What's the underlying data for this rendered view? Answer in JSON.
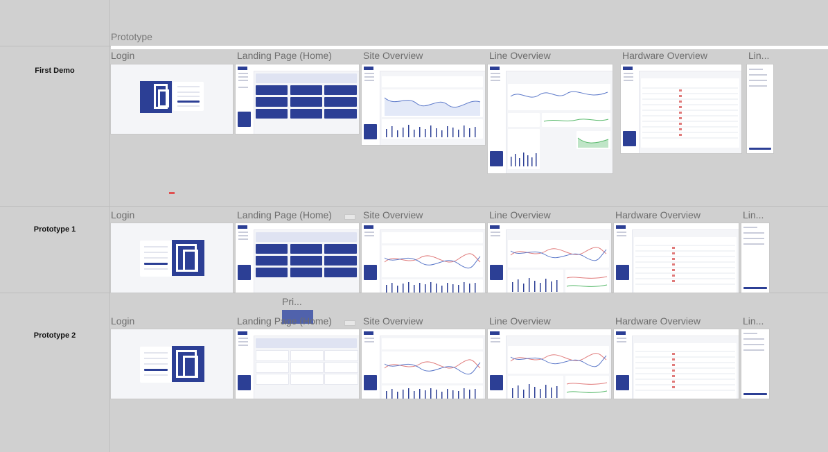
{
  "page": {
    "section_title": "Prototype",
    "rows": [
      {
        "label": "First Demo"
      },
      {
        "label": "Prototype 1"
      },
      {
        "label": "Prototype 2"
      }
    ],
    "frame_titles": {
      "login": "Login",
      "landing": "Landing Page (Home)",
      "site": "Site Overview",
      "line": "Line Overview",
      "hardware": "Hardware Overview",
      "lin_truncated": "Lin..."
    },
    "floating_label": "Pri..."
  },
  "colors": {
    "canvas": "#d0d0d0",
    "brand_blue": "#2c3f95",
    "chart_blue": "#5b78c9",
    "chart_red": "#e07a7a",
    "chart_green": "#58b96b"
  }
}
